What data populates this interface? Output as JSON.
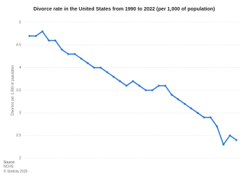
{
  "chart_data": {
    "type": "line",
    "title": "Divorce rate in the United States from 1990 to 2022 (per 1,000 of population)",
    "y_label": "Divorces per 1,000 of population",
    "categories": [
      null,
      null,
      null,
      null,
      null,
      null,
      null,
      null,
      null,
      null,
      null,
      null,
      null,
      null,
      null,
      null,
      null,
      null,
      null,
      null,
      null,
      null,
      null,
      null,
      null,
      null,
      null,
      null,
      null,
      null,
      null,
      null,
      null
    ],
    "series": [
      {
        "name": "Divorce rate",
        "color": "#2a78d6",
        "values": [
          4.7,
          4.7,
          4.8,
          4.6,
          4.6,
          4.4,
          4.3,
          4.3,
          4.2,
          4.1,
          4.0,
          4.0,
          3.9,
          3.8,
          3.7,
          3.6,
          3.7,
          3.6,
          3.5,
          3.5,
          3.6,
          3.6,
          3.4,
          3.3,
          3.2,
          3.1,
          3.0,
          2.9,
          2.9,
          2.7,
          2.3,
          2.5,
          2.4
        ]
      }
    ],
    "ylim": [
      2,
      5
    ],
    "yticks": [
      2,
      2.5,
      3,
      3.5,
      4,
      4.5,
      5
    ],
    "grid": true,
    "source": {
      "heading": "Source",
      "name": "NCHS",
      "copyright": "© Statista 2025"
    }
  }
}
